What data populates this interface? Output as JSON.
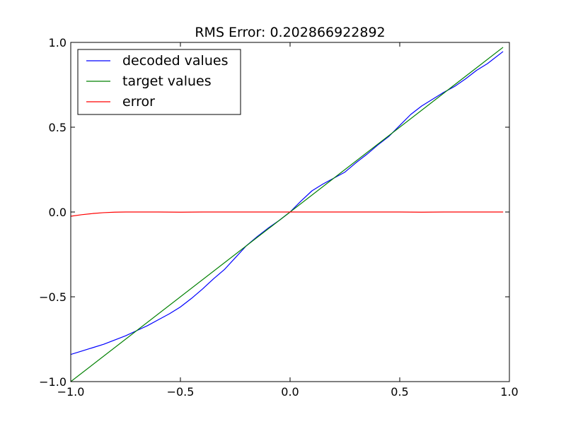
{
  "chart_data": {
    "type": "line",
    "title": "RMS Error: 0.202866922892",
    "xlabel": "",
    "ylabel": "",
    "xlim": [
      -1.0,
      1.0
    ],
    "ylim": [
      -1.0,
      1.0
    ],
    "x_ticks": [
      -1.0,
      -0.5,
      0.0,
      0.5,
      1.0
    ],
    "x_tick_labels": [
      "−1.0",
      "−0.5",
      "0.0",
      "0.5",
      "1.0"
    ],
    "y_ticks": [
      -1.0,
      -0.5,
      0.0,
      0.5,
      1.0
    ],
    "y_tick_labels": [
      "−1.0",
      "−0.5",
      "0.0",
      "0.5",
      "1.0"
    ],
    "grid": false,
    "legend_position": "top-left",
    "series": [
      {
        "name": "decoded values",
        "color": "#0000ff",
        "x": [
          -1.0,
          -0.95,
          -0.9,
          -0.85,
          -0.8,
          -0.75,
          -0.7,
          -0.65,
          -0.6,
          -0.55,
          -0.5,
          -0.45,
          -0.4,
          -0.35,
          -0.3,
          -0.25,
          -0.2,
          -0.15,
          -0.1,
          -0.05,
          0.0,
          0.05,
          0.1,
          0.15,
          0.2,
          0.25,
          0.3,
          0.35,
          0.4,
          0.45,
          0.5,
          0.55,
          0.6,
          0.65,
          0.7,
          0.75,
          0.8,
          0.85,
          0.9,
          0.97
        ],
        "y": [
          -0.84,
          -0.82,
          -0.8,
          -0.78,
          -0.755,
          -0.73,
          -0.7,
          -0.67,
          -0.635,
          -0.6,
          -0.56,
          -0.51,
          -0.455,
          -0.395,
          -0.34,
          -0.27,
          -0.2,
          -0.145,
          -0.095,
          -0.05,
          0.0,
          0.065,
          0.125,
          0.165,
          0.2,
          0.235,
          0.29,
          0.34,
          0.395,
          0.445,
          0.51,
          0.575,
          0.625,
          0.665,
          0.705,
          0.74,
          0.785,
          0.835,
          0.875,
          0.945
        ]
      },
      {
        "name": "target values",
        "color": "#008000",
        "x": [
          -1.0,
          0.97
        ],
        "y": [
          -1.0,
          0.97
        ]
      },
      {
        "name": "error",
        "color": "#ff0000",
        "x": [
          -1.0,
          -0.95,
          -0.9,
          -0.85,
          -0.8,
          -0.75,
          -0.7,
          -0.6,
          -0.5,
          -0.4,
          -0.3,
          -0.2,
          -0.1,
          0.0,
          0.1,
          0.2,
          0.3,
          0.4,
          0.5,
          0.6,
          0.7,
          0.8,
          0.9,
          0.97
        ],
        "y": [
          -0.025,
          -0.016,
          -0.009,
          -0.004,
          -0.001,
          0.0,
          0.0,
          0.0,
          -0.001,
          0.0,
          0.0,
          0.0,
          0.0,
          0.0,
          0.0,
          0.0,
          0.0,
          0.0,
          0.0,
          -0.001,
          0.0,
          0.0,
          0.0,
          0.0
        ]
      }
    ]
  }
}
